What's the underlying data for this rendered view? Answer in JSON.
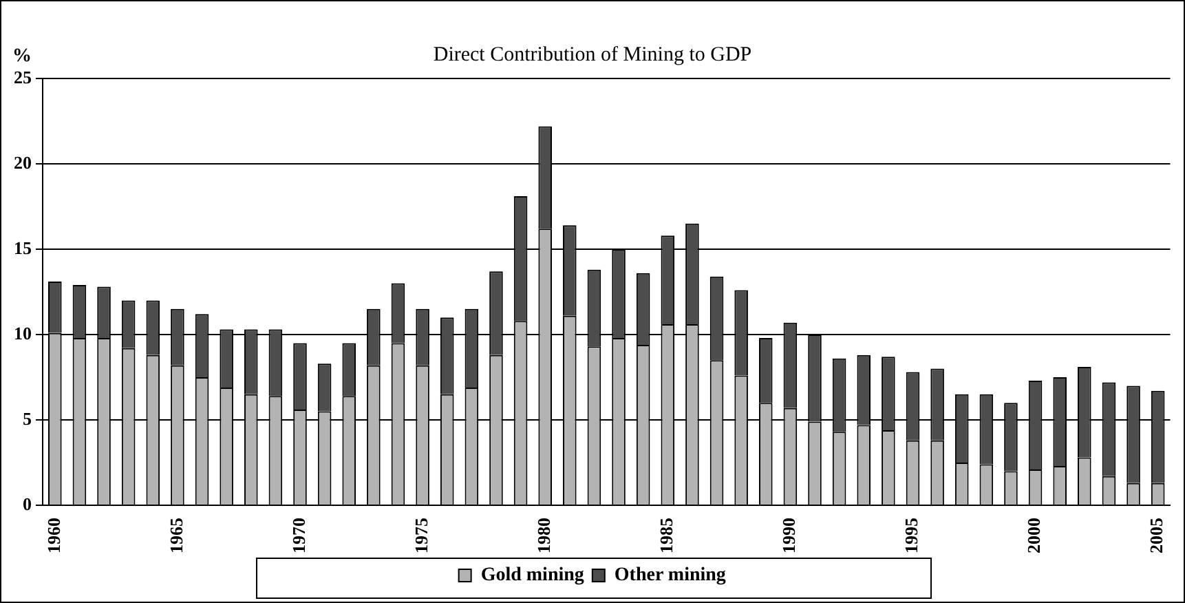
{
  "chart_data": {
    "type": "bar",
    "title": "Direct Contribution of Mining to GDP",
    "ylabel": "%",
    "stacked": true,
    "categories": [
      "1960",
      null,
      null,
      null,
      null,
      "1965",
      null,
      null,
      null,
      null,
      "1970",
      null,
      null,
      null,
      null,
      "1975",
      null,
      null,
      null,
      null,
      "1980",
      null,
      null,
      null,
      null,
      "1985",
      null,
      null,
      null,
      null,
      "1990",
      null,
      null,
      null,
      null,
      "1995",
      null,
      null,
      null,
      null,
      "2000",
      null,
      null,
      null,
      null,
      "2005"
    ],
    "series": [
      {
        "name": "Gold mining",
        "color": "#b3b3b3",
        "values": [
          10.1,
          9.8,
          9.8,
          9.2,
          8.8,
          8.2,
          7.5,
          6.9,
          6.5,
          6.4,
          5.6,
          5.5,
          6.4,
          8.2,
          9.5,
          8.2,
          6.5,
          6.9,
          8.8,
          10.8,
          16.2,
          11.1,
          9.3,
          9.8,
          9.4,
          10.6,
          10.6,
          8.5,
          7.6,
          6.0,
          5.7,
          4.9,
          4.3,
          4.7,
          4.4,
          3.8,
          3.8,
          2.5,
          2.4,
          2.0,
          2.1,
          2.3,
          2.8,
          1.7,
          1.3,
          1.3
        ]
      },
      {
        "name": "Other mining",
        "color": "#4d4d4d",
        "values": [
          3.0,
          3.1,
          3.0,
          2.8,
          3.2,
          3.3,
          3.7,
          3.4,
          3.8,
          3.9,
          3.9,
          2.8,
          3.1,
          3.3,
          3.5,
          3.3,
          4.5,
          4.6,
          4.9,
          7.3,
          6.0,
          5.3,
          4.5,
          5.2,
          4.2,
          5.2,
          5.9,
          4.9,
          5.0,
          3.8,
          5.0,
          5.1,
          4.3,
          4.1,
          4.3,
          4.0,
          4.2,
          4.0,
          4.1,
          4.0,
          5.2,
          5.2,
          5.3,
          5.5,
          5.7,
          5.4
        ]
      }
    ],
    "ylim": [
      0,
      25
    ],
    "yticks": [
      0,
      5,
      10,
      15,
      20,
      25
    ],
    "grid": "y",
    "legend": "bottom"
  }
}
